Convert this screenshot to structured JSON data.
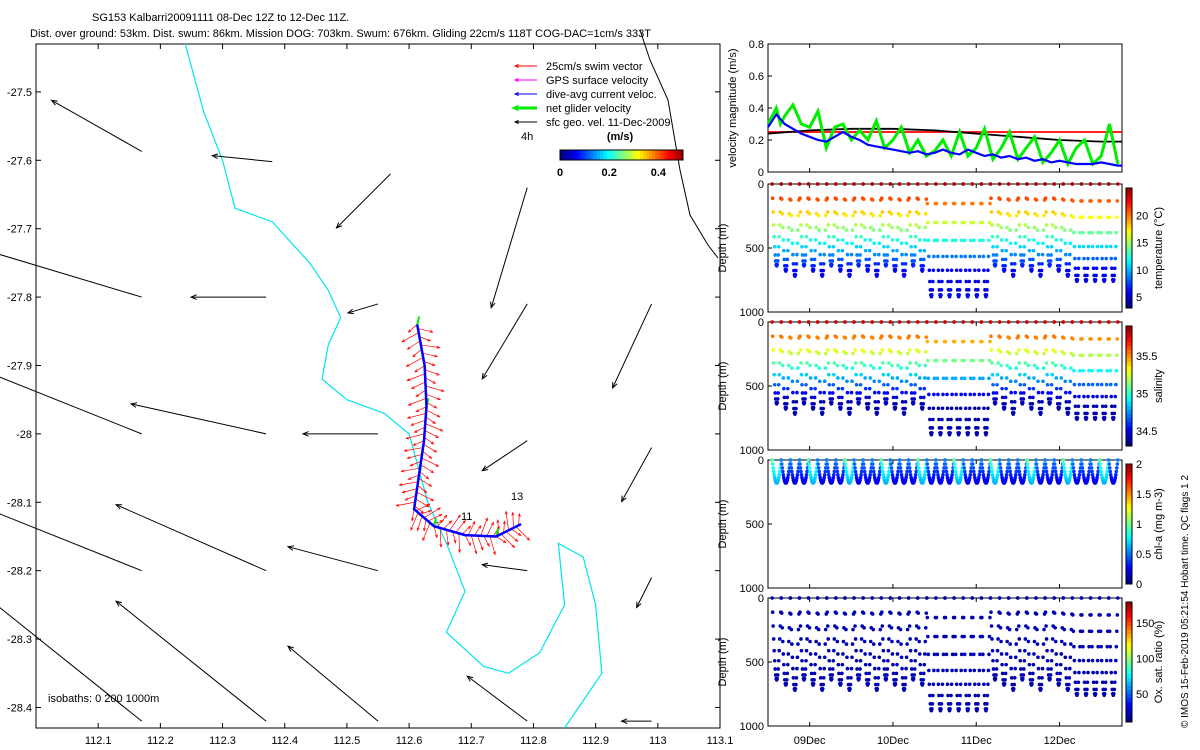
{
  "header": {
    "title_line1": "SG153 Kalbarri20091111 08-Dec 12Z to 12-Dec 11Z.",
    "title_line2": "Dist. over ground: 53km. Dist. swum: 86km. Mission DOG: 703km. Swum: 676km. Gliding 22cm/s 118T COG-DAC=1cm/s 333T"
  },
  "colors": {
    "swim": "#ff0000",
    "gps": "#ff00ff",
    "dac": "#0000ff",
    "net": "#00ee00",
    "sfc": "#000000",
    "isobath": "#00e5ee",
    "oxygen": "#0a1a7a"
  },
  "chart_data": [
    {
      "type": "map",
      "xlim": [
        112.0,
        113.1
      ],
      "ylim": [
        -28.43,
        -27.43
      ],
      "x_ticks": [
        "112.1",
        "112.2",
        "112.3",
        "112.4",
        "112.5",
        "112.6",
        "112.7",
        "112.8",
        "112.9",
        "113",
        "113.1"
      ],
      "y_ticks": [
        "-27.5",
        "-27.6",
        "-27.7",
        "-27.8",
        "-27.9",
        "-28",
        "-28.1",
        "-28.2",
        "-28.3",
        "-28.4"
      ],
      "legend": [
        "25cm/s swim vector",
        "GPS surface velocity",
        "dive-avg current veloc.",
        "net glider velocity",
        "sfc geo. vel. 11-Dec-2009"
      ],
      "legend_position": "top-right",
      "colorbar": {
        "title": "(m/s)",
        "ticks": [
          "0",
          "0.2",
          "0.4"
        ],
        "range": [
          0,
          0.5
        ]
      },
      "annotations": [
        "4h",
        "11",
        "13"
      ],
      "isobath_note": "isobaths: 0   200  1000m",
      "isobath_200m": [
        [
          112.24,
          -27.43
        ],
        [
          112.27,
          -27.53
        ],
        [
          112.3,
          -27.6
        ],
        [
          112.32,
          -27.67
        ],
        [
          112.38,
          -27.69
        ],
        [
          112.44,
          -27.75
        ],
        [
          112.47,
          -27.79
        ],
        [
          112.49,
          -27.83
        ],
        [
          112.47,
          -27.87
        ],
        [
          112.46,
          -27.92
        ],
        [
          112.5,
          -27.95
        ],
        [
          112.56,
          -27.97
        ],
        [
          112.6,
          -28.0
        ],
        [
          112.63,
          -28.1
        ],
        [
          112.66,
          -28.16
        ],
        [
          112.69,
          -28.23
        ],
        [
          112.66,
          -28.29
        ],
        [
          112.72,
          -28.34
        ],
        [
          112.76,
          -28.35
        ],
        [
          112.81,
          -28.32
        ],
        [
          112.85,
          -28.25
        ],
        [
          112.84,
          -28.16
        ],
        [
          112.88,
          -28.18
        ],
        [
          112.9,
          -28.25
        ],
        [
          112.91,
          -28.35
        ],
        [
          112.85,
          -28.43
        ]
      ],
      "track": [
        [
          112.613,
          -27.84
        ],
        [
          112.625,
          -27.9
        ],
        [
          112.628,
          -27.96
        ],
        [
          112.624,
          -28.01
        ],
        [
          112.616,
          -28.06
        ],
        [
          112.608,
          -28.11
        ],
        [
          112.64,
          -28.135
        ],
        [
          112.69,
          -28.148
        ],
        [
          112.74,
          -28.15
        ],
        [
          112.78,
          -28.132
        ]
      ],
      "geo_vectors": [
        {
          "lon": 112.17,
          "lat": -27.587,
          "u": -0.03,
          "v": 0.017
        },
        {
          "lon": 112.38,
          "lat": -27.602,
          "u": -0.02,
          "v": 0.002
        },
        {
          "lon": 112.57,
          "lat": -27.62,
          "u": -0.018,
          "v": -0.018
        },
        {
          "lon": 112.79,
          "lat": -27.64,
          "u": -0.012,
          "v": -0.04
        },
        {
          "lon": 112.17,
          "lat": -27.8,
          "u": -0.05,
          "v": 0.015
        },
        {
          "lon": 112.37,
          "lat": -27.8,
          "u": -0.025,
          "v": 0.0
        },
        {
          "lon": 112.55,
          "lat": -27.81,
          "u": -0.01,
          "v": -0.003
        },
        {
          "lon": 112.79,
          "lat": -27.81,
          "u": -0.015,
          "v": -0.025
        },
        {
          "lon": 112.99,
          "lat": -27.81,
          "u": -0.013,
          "v": -0.028
        },
        {
          "lon": 112.17,
          "lat": -28.0,
          "u": -0.055,
          "v": 0.022
        },
        {
          "lon": 112.37,
          "lat": -28.0,
          "u": -0.045,
          "v": 0.01
        },
        {
          "lon": 112.55,
          "lat": -28.0,
          "u": -0.025,
          "v": 0.0
        },
        {
          "lon": 112.79,
          "lat": -28.01,
          "u": -0.015,
          "v": -0.01
        },
        {
          "lon": 112.99,
          "lat": -28.02,
          "u": -0.01,
          "v": -0.018
        },
        {
          "lon": 112.17,
          "lat": -28.2,
          "u": -0.055,
          "v": 0.022
        },
        {
          "lon": 112.37,
          "lat": -28.2,
          "u": -0.05,
          "v": 0.022
        },
        {
          "lon": 112.55,
          "lat": -28.2,
          "u": -0.03,
          "v": 0.008
        },
        {
          "lon": 112.79,
          "lat": -28.2,
          "u": -0.015,
          "v": 0.002
        },
        {
          "lon": 112.99,
          "lat": -28.21,
          "u": -0.005,
          "v": -0.01
        },
        {
          "lon": 112.17,
          "lat": -28.42,
          "u": -0.05,
          "v": 0.04
        },
        {
          "lon": 112.37,
          "lat": -28.42,
          "u": -0.05,
          "v": 0.04
        },
        {
          "lon": 112.55,
          "lat": -28.42,
          "u": -0.03,
          "v": 0.025
        },
        {
          "lon": 112.79,
          "lat": -28.42,
          "u": -0.02,
          "v": 0.015
        },
        {
          "lon": 112.99,
          "lat": -28.42,
          "u": -0.01,
          "v": 0.0
        }
      ]
    },
    {
      "type": "line",
      "ylabel": "velocity magnitude (m/s)",
      "xlim": [
        8.5,
        12.75
      ],
      "ylim": [
        0,
        0.8
      ],
      "y_ticks": [
        "0",
        "0.2",
        "0.4",
        "0.6",
        "0.8"
      ],
      "series": [
        {
          "color": "#ff0000",
          "x": [
            8.5,
            12.75
          ],
          "y": [
            0.25,
            0.25
          ]
        },
        {
          "color": "#000000",
          "x": [
            8.5,
            9.0,
            9.5,
            10.0,
            10.5,
            11.0,
            11.5,
            12.0,
            12.5,
            12.75
          ],
          "y": [
            0.24,
            0.26,
            0.27,
            0.27,
            0.26,
            0.24,
            0.22,
            0.2,
            0.19,
            0.19
          ]
        },
        {
          "color": "#00ee00",
          "x": [
            8.5,
            8.6,
            8.65,
            8.7,
            8.8,
            8.9,
            9.0,
            9.1,
            9.2,
            9.3,
            9.4,
            9.5,
            9.6,
            9.7,
            9.8,
            9.9,
            10.0,
            10.1,
            10.2,
            10.3,
            10.4,
            10.5,
            10.6,
            10.7,
            10.8,
            10.9,
            11.0,
            11.1,
            11.2,
            11.3,
            11.4,
            11.5,
            11.6,
            11.7,
            11.8,
            11.9,
            12.0,
            12.1,
            12.2,
            12.3,
            12.4,
            12.5,
            12.6,
            12.7
          ],
          "y": [
            0.3,
            0.4,
            0.3,
            0.35,
            0.42,
            0.3,
            0.28,
            0.38,
            0.15,
            0.28,
            0.3,
            0.2,
            0.26,
            0.2,
            0.32,
            0.15,
            0.2,
            0.28,
            0.12,
            0.2,
            0.1,
            0.13,
            0.2,
            0.1,
            0.25,
            0.1,
            0.15,
            0.27,
            0.08,
            0.15,
            0.25,
            0.08,
            0.15,
            0.22,
            0.06,
            0.12,
            0.2,
            0.05,
            0.15,
            0.2,
            0.05,
            0.1,
            0.3,
            0.05
          ]
        },
        {
          "color": "#0000ff",
          "x": [
            8.5,
            8.6,
            8.7,
            8.8,
            8.9,
            9.0,
            9.1,
            9.2,
            9.3,
            9.4,
            9.5,
            9.6,
            9.7,
            9.8,
            9.9,
            10.0,
            10.1,
            10.2,
            10.3,
            10.4,
            10.5,
            10.6,
            10.7,
            10.8,
            10.9,
            11.0,
            11.1,
            11.2,
            11.3,
            11.4,
            11.5,
            11.6,
            11.7,
            11.8,
            11.9,
            12.0,
            12.1,
            12.2,
            12.3,
            12.4,
            12.5,
            12.6,
            12.7,
            12.75
          ],
          "y": [
            0.28,
            0.36,
            0.3,
            0.27,
            0.24,
            0.22,
            0.2,
            0.19,
            0.22,
            0.25,
            0.22,
            0.2,
            0.17,
            0.16,
            0.15,
            0.14,
            0.13,
            0.12,
            0.13,
            0.11,
            0.12,
            0.14,
            0.12,
            0.11,
            0.14,
            0.12,
            0.1,
            0.11,
            0.09,
            0.1,
            0.08,
            0.09,
            0.07,
            0.08,
            0.06,
            0.07,
            0.06,
            0.05,
            0.05,
            0.05,
            0.06,
            0.05,
            0.04,
            0.04
          ]
        }
      ]
    },
    {
      "type": "scatter",
      "variable": "temperature",
      "ylabel": "Depth (m)",
      "colorbar_label": "temperature (°C)",
      "ylim": [
        0,
        1000
      ],
      "y_ticks": [
        "0",
        "500",
        "1000"
      ],
      "colorbar_ticks": [
        "5",
        "10",
        "15",
        "20"
      ],
      "clim": [
        3,
        25
      ],
      "colormap": "jet"
    },
    {
      "type": "scatter",
      "variable": "salinity",
      "ylabel": "Depth (m)",
      "colorbar_label": "salinity",
      "ylim": [
        0,
        1000
      ],
      "y_ticks": [
        "0",
        "500",
        "1000"
      ],
      "colorbar_ticks": [
        "34.5",
        "35",
        "35.5"
      ],
      "clim": [
        34.3,
        35.9
      ],
      "colormap": "jet"
    },
    {
      "type": "scatter",
      "variable": "chl-a",
      "ylabel": "Depth (m)",
      "colorbar_label": "chl-a (mg m-3)",
      "ylim": [
        0,
        1000
      ],
      "y_ticks": [
        "0",
        "500",
        "1000"
      ],
      "colorbar_ticks": [
        "0",
        "0.5",
        "1",
        "1.5",
        "2"
      ],
      "clim": [
        0,
        2
      ],
      "colormap": "jet"
    },
    {
      "type": "scatter",
      "variable": "oxygen",
      "ylabel": "Depth (m)",
      "colorbar_label": "Ox. sat. ratio (%)",
      "ylim": [
        0,
        1000
      ],
      "y_ticks": [
        "0",
        "500",
        "1000"
      ],
      "colorbar_ticks": [
        "50",
        "100",
        "150"
      ],
      "clim": [
        10,
        180
      ],
      "colormap": "jet"
    }
  ],
  "time_axis": {
    "xlim": [
      8.5,
      12.75
    ],
    "tick_values": [
      9,
      10,
      11,
      12
    ],
    "tick_labels": [
      "09Dec",
      "10Dec",
      "11Dec",
      "12Dec"
    ]
  },
  "footer_credit": "© IMOS 15-Feb-2019 05:21:54 Hobart time. QC flags 1  2"
}
